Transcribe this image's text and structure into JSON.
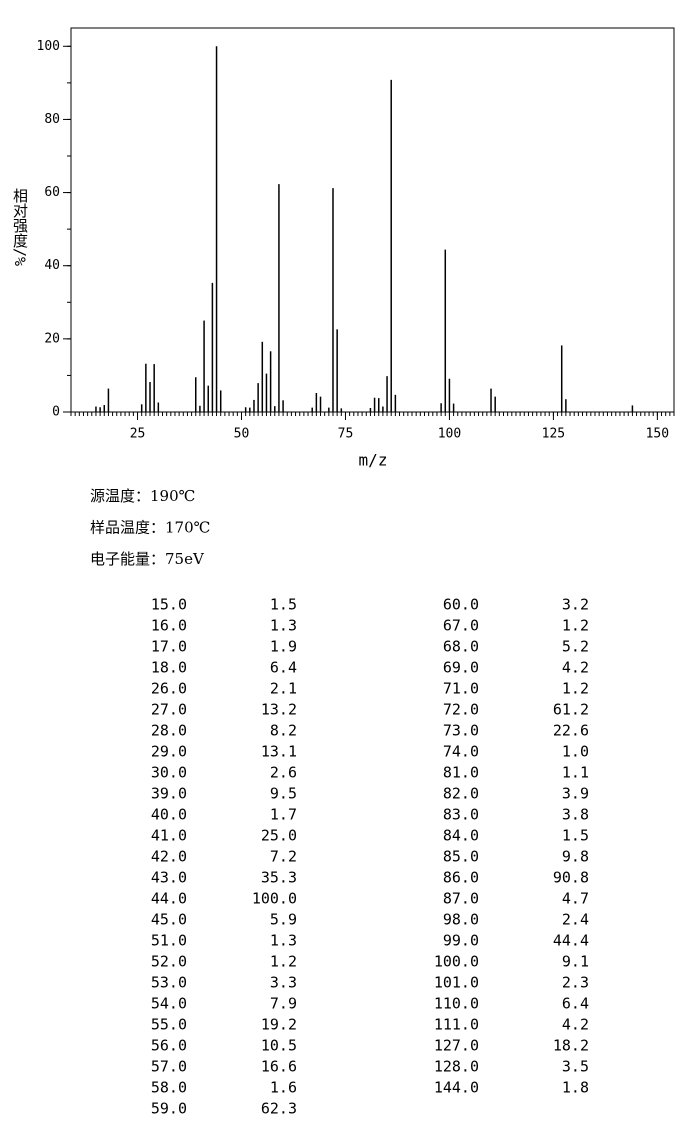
{
  "chart_data": {
    "type": "stick",
    "x_label": "m/z",
    "y_label": "相对强度/%",
    "x": [
      15,
      16,
      17,
      18,
      26,
      27,
      28,
      29,
      30,
      39,
      40,
      41,
      42,
      43,
      44,
      45,
      51,
      52,
      53,
      54,
      55,
      56,
      57,
      58,
      59,
      60,
      67,
      68,
      69,
      71,
      72,
      73,
      74,
      81,
      82,
      83,
      84,
      85,
      86,
      87,
      98,
      99,
      100,
      101,
      110,
      111,
      127,
      128,
      144
    ],
    "values": [
      1.5,
      1.3,
      1.9,
      6.4,
      2.1,
      13.2,
      8.2,
      13.1,
      2.6,
      9.5,
      1.7,
      25.0,
      7.2,
      35.3,
      100,
      5.9,
      1.3,
      1.2,
      3.3,
      7.9,
      19.2,
      10.5,
      16.6,
      1.6,
      62.3,
      3.2,
      1.2,
      5.2,
      4.2,
      1.2,
      61.2,
      22.6,
      1.0,
      1.1,
      3.9,
      3.8,
      1.5,
      9.8,
      90.8,
      4.7,
      2.4,
      44.4,
      9.1,
      2.3,
      6.4,
      4.2,
      18.2,
      3.5,
      1.8
    ],
    "color": "#000000",
    "xlim": [
      9,
      154
    ],
    "xticks": [
      25,
      50,
      75,
      100,
      125,
      150
    ],
    "x_minor_step": 1,
    "ylim": [
      0,
      105
    ],
    "yticks": [
      0,
      20,
      40,
      60,
      80,
      100
    ],
    "y_minor_step": 10
  },
  "info": [
    "源温度：190℃",
    "样品温度：170℃",
    "电子能量：75eV"
  ],
  "table": {
    "rows": [
      [
        "15.0",
        "1.5"
      ],
      [
        "16.0",
        "1.3"
      ],
      [
        "17.0",
        "1.9"
      ],
      [
        "18.0",
        "6.4"
      ],
      [
        "26.0",
        "2.1"
      ],
      [
        "27.0",
        "13.2"
      ],
      [
        "28.0",
        "8.2"
      ],
      [
        "29.0",
        "13.1"
      ],
      [
        "30.0",
        "2.6"
      ],
      [
        "39.0",
        "9.5"
      ],
      [
        "40.0",
        "1.7"
      ],
      [
        "41.0",
        "25.0"
      ],
      [
        "42.0",
        "7.2"
      ],
      [
        "43.0",
        "35.3"
      ],
      [
        "44.0",
        "100.0"
      ],
      [
        "45.0",
        "5.9"
      ],
      [
        "51.0",
        "1.3"
      ],
      [
        "52.0",
        "1.2"
      ],
      [
        "53.0",
        "3.3"
      ],
      [
        "54.0",
        "7.9"
      ],
      [
        "55.0",
        "19.2"
      ],
      [
        "56.0",
        "10.5"
      ],
      [
        "57.0",
        "16.6"
      ],
      [
        "58.0",
        "1.6"
      ],
      [
        "59.0",
        "62.3"
      ],
      [
        "60.0",
        "3.2"
      ],
      [
        "67.0",
        "1.2"
      ],
      [
        "68.0",
        "5.2"
      ],
      [
        "69.0",
        "4.2"
      ],
      [
        "71.0",
        "1.2"
      ],
      [
        "72.0",
        "61.2"
      ],
      [
        "73.0",
        "22.6"
      ],
      [
        "74.0",
        "1.0"
      ],
      [
        "81.0",
        "1.1"
      ],
      [
        "82.0",
        "3.9"
      ],
      [
        "83.0",
        "3.8"
      ],
      [
        "84.0",
        "1.5"
      ],
      [
        "85.0",
        "9.8"
      ],
      [
        "86.0",
        "90.8"
      ],
      [
        "87.0",
        "4.7"
      ],
      [
        "98.0",
        "2.4"
      ],
      [
        "99.0",
        "44.4"
      ],
      [
        "100.0",
        "9.1"
      ],
      [
        "101.0",
        "2.3"
      ],
      [
        "110.0",
        "6.4"
      ],
      [
        "111.0",
        "4.2"
      ],
      [
        "127.0",
        "18.2"
      ],
      [
        "128.0",
        "3.5"
      ],
      [
        "144.0",
        "1.8"
      ]
    ]
  }
}
